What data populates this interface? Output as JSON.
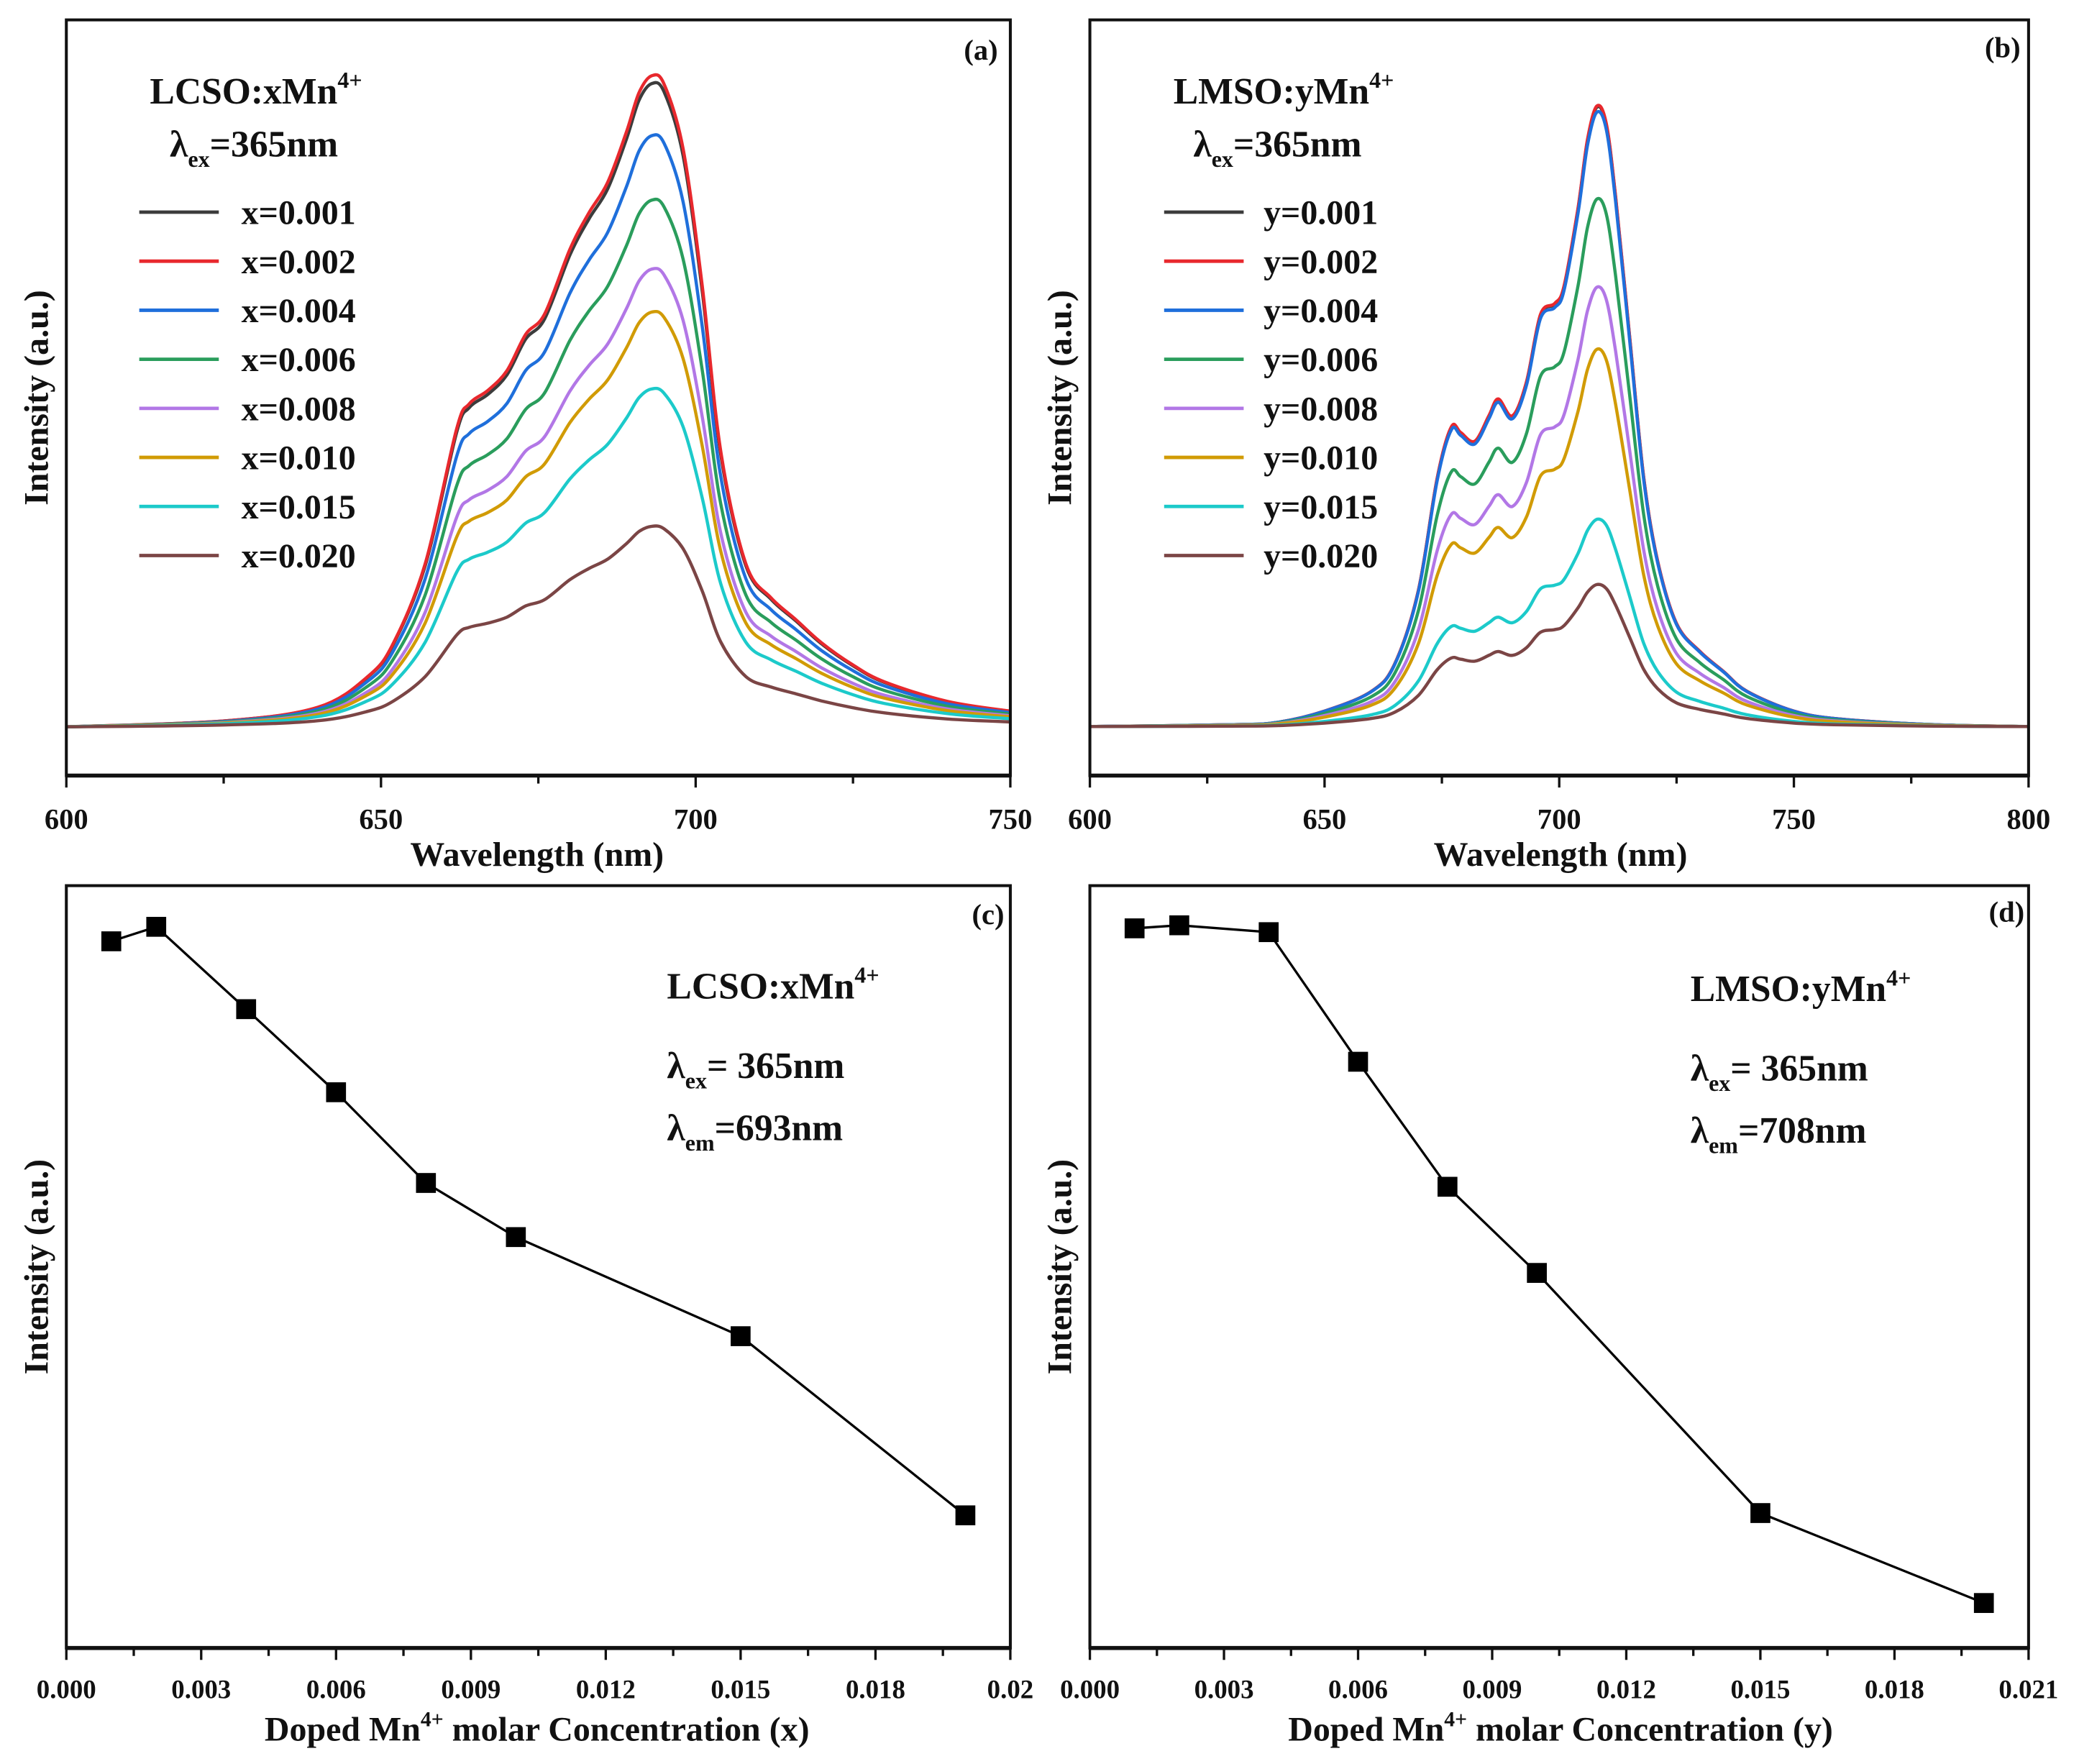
{
  "chart_data": [
    {
      "panel_label": "(a)",
      "type": "line",
      "title": [
        {
          "t": "LCSO:xMn",
          "s": ""
        },
        {
          "t": "4+",
          "s": "sup"
        }
      ],
      "annotations": [
        [
          {
            "t": "λ",
            "s": ""
          },
          {
            "t": "ex",
            "s": "sub"
          },
          {
            "t": "=365nm",
            "s": ""
          }
        ]
      ],
      "xlabel": [
        {
          "t": "Wavelength (nm)",
          "s": ""
        }
      ],
      "ylabel": "Intensity (a.u.)",
      "xlim": [
        600,
        750
      ],
      "xticks": [
        600,
        650,
        700,
        750
      ],
      "xtick_labels": [
        "600",
        "650",
        "700",
        "750"
      ],
      "xminor_step": 25,
      "ylim": [
        -0.075,
        1.086
      ],
      "legend": "top-left",
      "profile": {
        "x": [
          600,
          625,
          640,
          648,
          652,
          657,
          662,
          664,
          667,
          670,
          673,
          676,
          680,
          683,
          686,
          689,
          691,
          693,
          695,
          698,
          701,
          704,
          708,
          712,
          716,
          720,
          725,
          730,
          740,
          750
        ],
        "y": [
          0,
          0.009,
          0.03,
          0.078,
          0.129,
          0.25,
          0.457,
          0.496,
          0.517,
          0.547,
          0.603,
          0.634,
          0.733,
          0.789,
          0.836,
          0.914,
          0.974,
          1.0,
          0.987,
          0.888,
          0.681,
          0.422,
          0.25,
          0.198,
          0.164,
          0.129,
          0.095,
          0.069,
          0.039,
          0.024
        ]
      },
      "series": [
        {
          "name": "x=0.001",
          "peak": 0.988,
          "color": "#3c3c3c"
        },
        {
          "name": "x=0.002",
          "peak": 1.0,
          "color": "#e8282d"
        },
        {
          "name": "x=0.004",
          "peak": 0.908,
          "color": "#1f6fdb"
        },
        {
          "name": "x=0.006",
          "peak": 0.809,
          "color": "#2a9d5c"
        },
        {
          "name": "x=0.008",
          "peak": 0.703,
          "color": "#b277e6"
        },
        {
          "name": "x=0.010",
          "peak": 0.637,
          "color": "#d19b05"
        },
        {
          "name": "x=0.015",
          "peak": 0.519,
          "color": "#1ccaca"
        },
        {
          "name": "x=0.020",
          "peak": 0.308,
          "color": "#7b4545"
        }
      ]
    },
    {
      "panel_label": "(b)",
      "type": "line",
      "title": [
        {
          "t": "LMSO:yMn",
          "s": ""
        },
        {
          "t": "4+",
          "s": "sup"
        }
      ],
      "annotations": [
        [
          {
            "t": "λ",
            "s": ""
          },
          {
            "t": "ex",
            "s": "sub"
          },
          {
            "t": "=365nm",
            "s": ""
          }
        ]
      ],
      "xlabel": [
        {
          "t": "Wavelength (nm)",
          "s": ""
        }
      ],
      "ylabel": "Intensity (a.u.)",
      "xlim": [
        600,
        800
      ],
      "xticks": [
        600,
        650,
        700,
        750,
        800
      ],
      "xtick_labels": [
        "600",
        "650",
        "700",
        "750",
        "800"
      ],
      "xminor_step": 25,
      "ylim": [
        -0.079,
        1.139
      ],
      "legend": "top-left",
      "profile": {
        "x": [
          600,
          630,
          640,
          650,
          660,
          665,
          670,
          674,
          677,
          679,
          682,
          685,
          687,
          690,
          693,
          696,
          699,
          701,
          704,
          706,
          708,
          710,
          712,
          715,
          718,
          721,
          725,
          730,
          735,
          740,
          750,
          760,
          780,
          800
        ],
        "y": [
          0,
          0.003,
          0.007,
          0.025,
          0.057,
          0.102,
          0.22,
          0.401,
          0.483,
          0.474,
          0.46,
          0.501,
          0.528,
          0.501,
          0.555,
          0.664,
          0.682,
          0.709,
          0.836,
          0.945,
          1.0,
          0.973,
          0.855,
          0.629,
          0.402,
          0.266,
          0.166,
          0.121,
          0.089,
          0.057,
          0.025,
          0.012,
          0.003,
          0
        ]
      },
      "series": [
        {
          "name": "y=0.001",
          "peak": 0.998,
          "color": "#3c3c3c"
        },
        {
          "name": "y=0.002",
          "peak": 1.0,
          "color": "#e8282d"
        },
        {
          "name": "y=0.004",
          "peak": 0.99,
          "color": "#1f6fdb"
        },
        {
          "name": "y=0.006",
          "peak": 0.85,
          "color": "#2a9d5c"
        },
        {
          "name": "y=0.008",
          "peak": 0.708,
          "color": "#b277e6"
        },
        {
          "name": "y=0.010",
          "peak": 0.608,
          "color": "#d19b05"
        },
        {
          "name": "y=0.015",
          "peak": 0.334,
          "color": "#1ccaca"
        },
        {
          "name": "y=0.020",
          "peak": 0.229,
          "color": "#7b4545"
        }
      ]
    },
    {
      "panel_label": "(c)",
      "type": "line",
      "title": [
        {
          "t": "LCSO:xMn",
          "s": ""
        },
        {
          "t": "4+",
          "s": "sup"
        }
      ],
      "annotations": [
        [
          {
            "t": "λ",
            "s": ""
          },
          {
            "t": "ex",
            "s": "sub"
          },
          {
            "t": "= 365nm",
            "s": ""
          }
        ],
        [
          {
            "t": "λ",
            "s": ""
          },
          {
            "t": "em",
            "s": "sub"
          },
          {
            "t": "=693nm",
            "s": ""
          }
        ]
      ],
      "xlabel": [
        {
          "t": "Doped Mn",
          "s": ""
        },
        {
          "t": "4+",
          "s": "sup"
        },
        {
          "t": " molar Concentration (x)",
          "s": ""
        }
      ],
      "ylabel": "Intensity (a.u.)",
      "xlim": [
        0,
        0.021
      ],
      "xticks": [
        0,
        0.003,
        0.006,
        0.009,
        0.012,
        0.015,
        0.018,
        0.021
      ],
      "xtick_labels": [
        "0.000",
        "0.003",
        "0.006",
        "0.009",
        "0.012",
        "0.015",
        "0.018",
        "0.02"
      ],
      "xminor_step": 0.0015,
      "ylim": [
        0,
        1
      ],
      "x": [
        0.001,
        0.002,
        0.004,
        0.006,
        0.008,
        0.01,
        0.015,
        0.02
      ],
      "values": [
        0.927,
        0.946,
        0.838,
        0.729,
        0.61,
        0.539,
        0.409,
        0.174
      ],
      "marker": "square",
      "color": "#000000"
    },
    {
      "panel_label": "(d)",
      "type": "line",
      "title": [
        {
          "t": "LMSO:yMn",
          "s": ""
        },
        {
          "t": "4+",
          "s": "sup"
        }
      ],
      "annotations": [
        [
          {
            "t": "λ",
            "s": ""
          },
          {
            "t": "ex",
            "s": "sub"
          },
          {
            "t": "= 365nm",
            "s": ""
          }
        ],
        [
          {
            "t": "λ",
            "s": ""
          },
          {
            "t": "em",
            "s": "sub"
          },
          {
            "t": "=708nm",
            "s": ""
          }
        ]
      ],
      "xlabel": [
        {
          "t": "Doped Mn",
          "s": ""
        },
        {
          "t": "4+",
          "s": "sup"
        },
        {
          "t": " molar Concentration (y)",
          "s": ""
        }
      ],
      "ylabel": "Intensity (a.u.)",
      "xlim": [
        0,
        0.021
      ],
      "xticks": [
        0,
        0.003,
        0.006,
        0.009,
        0.012,
        0.015,
        0.018,
        0.021
      ],
      "xtick_labels": [
        "0.000",
        "0.003",
        "0.006",
        "0.009",
        "0.012",
        "0.015",
        "0.018",
        "0.021"
      ],
      "xminor_step": 0.0015,
      "ylim": [
        0,
        1
      ],
      "x": [
        0.001,
        0.002,
        0.004,
        0.006,
        0.008,
        0.01,
        0.015,
        0.02
      ],
      "values": [
        0.944,
        0.948,
        0.939,
        0.769,
        0.605,
        0.492,
        0.177,
        0.059
      ],
      "marker": "square",
      "color": "#000000"
    }
  ]
}
